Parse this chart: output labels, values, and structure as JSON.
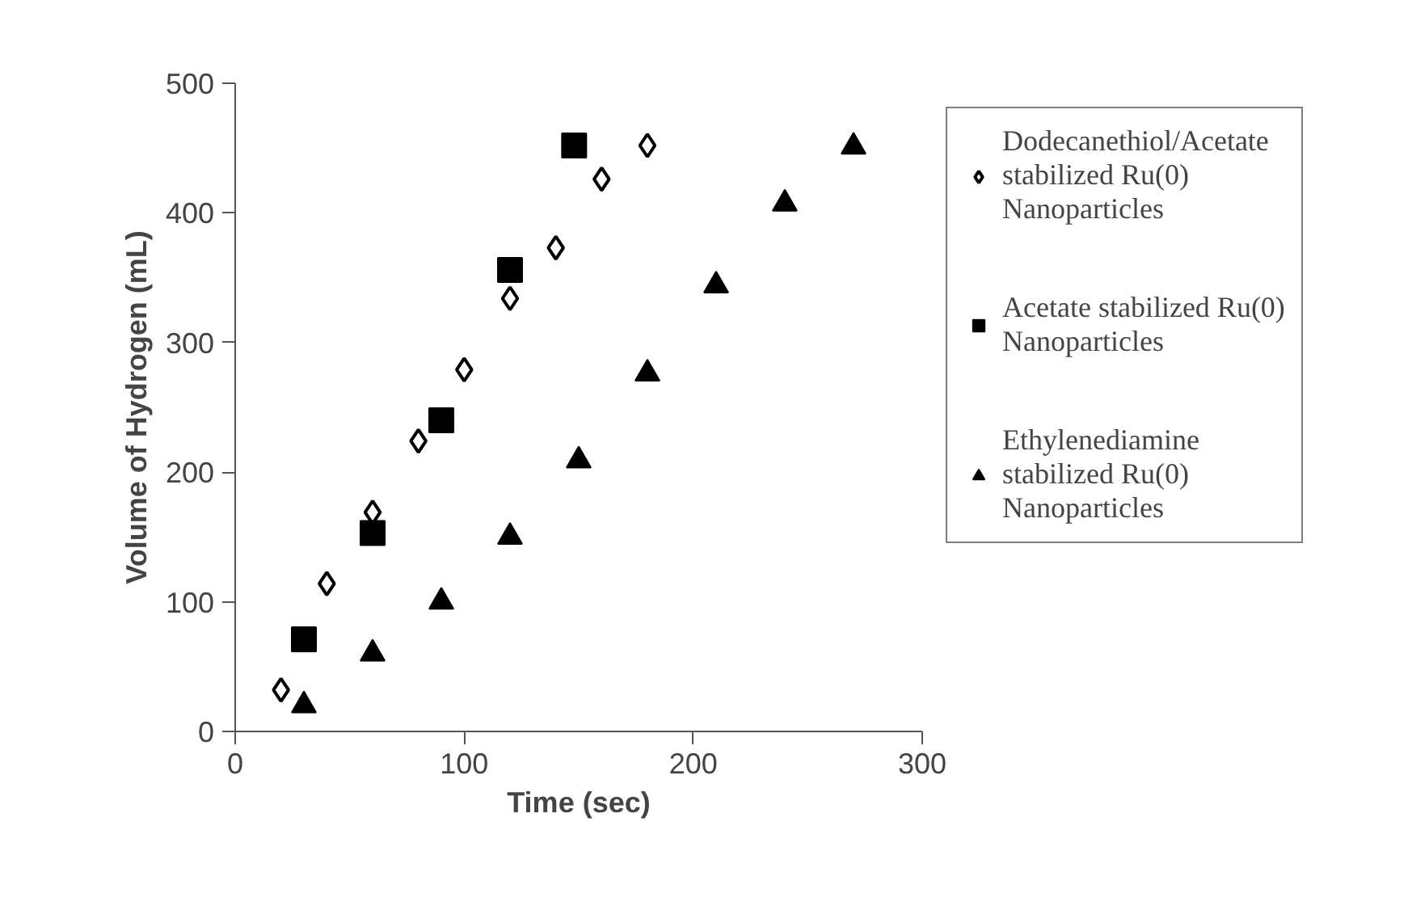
{
  "chart_data": {
    "type": "scatter",
    "xlabel": "Time (sec)",
    "ylabel": "Volume of Hydrogen (mL)",
    "xlim": [
      0,
      300
    ],
    "xticks": [
      0,
      100,
      200,
      300
    ],
    "ylim": [
      0,
      500
    ],
    "yticks": [
      0,
      100,
      200,
      300,
      400,
      500
    ],
    "grid": false,
    "legend": "right",
    "series": [
      {
        "name": "Dodecanethiol/Acetate\nstabilized Ru(0)\nNanoparticles",
        "color": "#000000",
        "marker": "diamond",
        "x": [
          20,
          40,
          60,
          80,
          100,
          120,
          140,
          160,
          180
        ],
        "values": [
          32,
          114,
          169,
          224,
          279,
          334,
          373,
          426,
          452
        ]
      },
      {
        "name": "Acetate stabilized Ru(0)\nNanoparticles",
        "color": "#000000",
        "marker": "square",
        "x": [
          30,
          60,
          90,
          120,
          148
        ],
        "values": [
          71,
          153,
          240,
          356,
          452
        ]
      },
      {
        "name": "Ethylenediamine\nstabilized Ru(0)\nNanoparticles",
        "color": "#000000",
        "marker": "triangle",
        "x": [
          30,
          60,
          90,
          120,
          150,
          180,
          210,
          240,
          270
        ],
        "values": [
          20,
          60,
          100,
          150,
          209,
          276,
          344,
          407,
          451
        ]
      }
    ]
  }
}
